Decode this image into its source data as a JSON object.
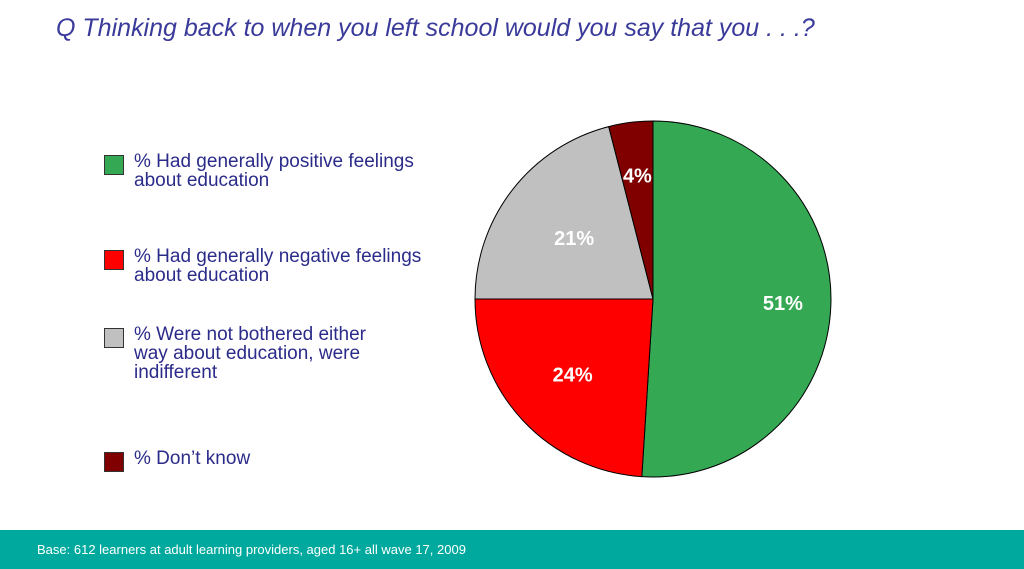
{
  "title": "Q  Thinking back to when you left school would you say that you . . .?",
  "chart_data": {
    "type": "pie",
    "slices": [
      {
        "label": "% Had generally positive feelings about education",
        "value": 51,
        "display": "51%",
        "color": "#34a853"
      },
      {
        "label": "% Had generally negative feelings about education",
        "value": 24,
        "display": "24%",
        "color": "#ff0000"
      },
      {
        "label": "% Were not bothered either way about education, were indifferent",
        "value": 21,
        "display": "21%",
        "color": "#c0c0c0"
      },
      {
        "label": "% Don’t know",
        "value": 4,
        "display": "4%",
        "color": "#800000"
      }
    ],
    "legend_placement": "left"
  },
  "legend": {
    "items": [
      "% Had generally positive feelings about education",
      "% Had generally negative feelings about education",
      "% Were not bothered either way about education, were indifferent",
      "% Don’t know"
    ]
  },
  "footer": {
    "text": "Base: 612 learners at adult learning providers, aged 16+  all wave 17, 2009",
    "color": "#00a99d"
  }
}
